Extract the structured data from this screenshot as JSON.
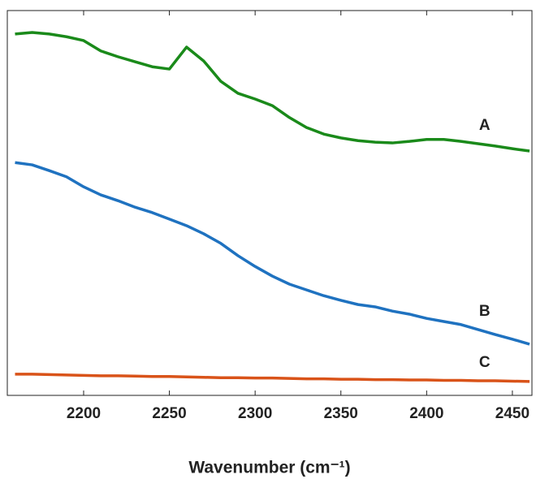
{
  "chart_data": {
    "type": "line",
    "x_label": "Wavenumber (cm⁻¹)",
    "x": [
      2160,
      2170,
      2180,
      2190,
      2200,
      2210,
      2220,
      2230,
      2240,
      2250,
      2260,
      2270,
      2280,
      2290,
      2300,
      2310,
      2320,
      2330,
      2340,
      2350,
      2360,
      2370,
      2380,
      2390,
      2400,
      2410,
      2420,
      2430,
      2440,
      2450,
      2460
    ],
    "series": [
      {
        "name": "A",
        "color": "#1a8a1a",
        "values": [
          93.9,
          94.3,
          93.9,
          93.2,
          92.2,
          89.5,
          88.0,
          86.7,
          85.4,
          84.8,
          90.5,
          86.9,
          81.6,
          78.5,
          77.0,
          75.3,
          72.2,
          69.6,
          67.9,
          66.9,
          66.2,
          65.8,
          65.6,
          66.0,
          66.5,
          66.5,
          66.0,
          65.4,
          64.8,
          64.1,
          63.5
        ]
      },
      {
        "name": "B",
        "color": "#1f72c0",
        "values": [
          60.5,
          59.9,
          58.4,
          56.8,
          54.2,
          52.1,
          50.6,
          48.9,
          47.5,
          45.8,
          44.1,
          42.0,
          39.5,
          36.3,
          33.5,
          31.0,
          28.9,
          27.4,
          25.9,
          24.7,
          23.6,
          23.0,
          21.9,
          21.1,
          20.0,
          19.2,
          18.4,
          17.1,
          15.8,
          14.6,
          13.3
        ]
      },
      {
        "name": "C",
        "color": "#d95319",
        "values": [
          5.5,
          5.5,
          5.4,
          5.3,
          5.2,
          5.1,
          5.1,
          5.0,
          4.9,
          4.9,
          4.8,
          4.7,
          4.6,
          4.6,
          4.5,
          4.5,
          4.4,
          4.3,
          4.3,
          4.2,
          4.2,
          4.1,
          4.1,
          4.0,
          4.0,
          3.9,
          3.9,
          3.8,
          3.8,
          3.7,
          3.6
        ]
      }
    ],
    "xlim": [
      2155.5,
      2461.4
    ],
    "xticks": [
      2200,
      2250,
      2300,
      2350,
      2400,
      2450
    ],
    "ylim": [
      0,
      100
    ],
    "yticks": [],
    "grid": false
  }
}
